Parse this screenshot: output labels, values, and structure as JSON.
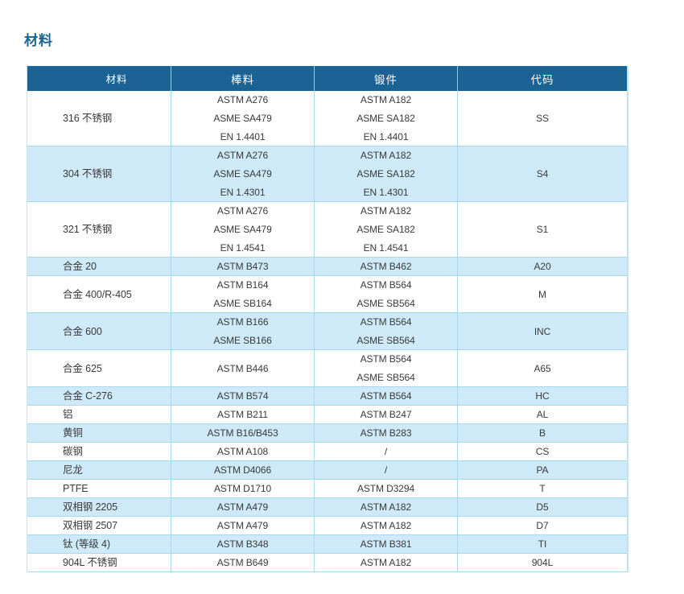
{
  "page": {
    "title": "材料"
  },
  "colors": {
    "title_text": "#1a6294",
    "header_bg": "#1b6394",
    "header_text": "#ffffff",
    "row_alt_bg": "#cee9f8",
    "row_bg": "#ffffff",
    "grid_border": "#a9d8ee",
    "body_text": "#3a3a3a"
  },
  "table": {
    "headers": [
      "材料",
      "棒料",
      "锻件",
      "代码"
    ],
    "rows": [
      {
        "material": "316 不锈钢",
        "bar": [
          "ASTM A276",
          "ASME SA479",
          "EN 1.4401"
        ],
        "forging": [
          "ASTM A182",
          "ASME SA182",
          "EN 1.4401"
        ],
        "code": "SS"
      },
      {
        "material": "304 不锈钢",
        "bar": [
          "ASTM A276",
          "ASME SA479",
          "EN 1.4301"
        ],
        "forging": [
          "ASTM A182",
          "ASME SA182",
          "EN 1.4301"
        ],
        "code": "S4"
      },
      {
        "material": "321 不锈钢",
        "bar": [
          "ASTM A276",
          "ASME SA479",
          "EN 1.4541"
        ],
        "forging": [
          "ASTM A182",
          "ASME SA182",
          "EN 1.4541"
        ],
        "code": "S1"
      },
      {
        "material": "合金 20",
        "bar": [
          "ASTM B473"
        ],
        "forging": [
          "ASTM B462"
        ],
        "code": "A20"
      },
      {
        "material": "合金 400/R-405",
        "bar": [
          "ASTM B164",
          "ASME SB164"
        ],
        "forging": [
          "ASTM B564",
          "ASME SB564"
        ],
        "code": "M"
      },
      {
        "material": "合金 600",
        "bar": [
          "ASTM B166",
          "ASME SB166"
        ],
        "forging": [
          "ASTM B564",
          "ASME SB564"
        ],
        "code": "INC"
      },
      {
        "material": "合金 625",
        "bar": [
          "ASTM B446"
        ],
        "forging": [
          "ASTM B564",
          "ASME SB564"
        ],
        "code": "A65"
      },
      {
        "material": "合金 C-276",
        "bar": [
          "ASTM B574"
        ],
        "forging": [
          "ASTM B564"
        ],
        "code": "HC"
      },
      {
        "material": "铝",
        "bar": [
          "ASTM B211"
        ],
        "forging": [
          "ASTM B247"
        ],
        "code": "AL"
      },
      {
        "material": "黄铜",
        "bar": [
          "ASTM B16/B453"
        ],
        "forging": [
          "ASTM B283"
        ],
        "code": "B"
      },
      {
        "material": "碳钢",
        "bar": [
          "ASTM A108"
        ],
        "forging": [
          "/"
        ],
        "code": "CS"
      },
      {
        "material": "尼龙",
        "bar": [
          "ASTM D4066"
        ],
        "forging": [
          "/"
        ],
        "code": "PA"
      },
      {
        "material": "PTFE",
        "bar": [
          "ASTM D1710"
        ],
        "forging": [
          "ASTM D3294"
        ],
        "code": "T"
      },
      {
        "material": "双相钢 2205",
        "bar": [
          "ASTM A479"
        ],
        "forging": [
          "ASTM A182"
        ],
        "code": "D5"
      },
      {
        "material": "双相钢 2507",
        "bar": [
          "ASTM A479"
        ],
        "forging": [
          "ASTM A182"
        ],
        "code": "D7"
      },
      {
        "material": "钛 (等级 4)",
        "bar": [
          "ASTM B348"
        ],
        "forging": [
          "ASTM B381"
        ],
        "code": "TI"
      },
      {
        "material": "904L 不锈钢",
        "bar": [
          "ASTM B649"
        ],
        "forging": [
          "ASTM A182"
        ],
        "code": "904L"
      }
    ]
  }
}
